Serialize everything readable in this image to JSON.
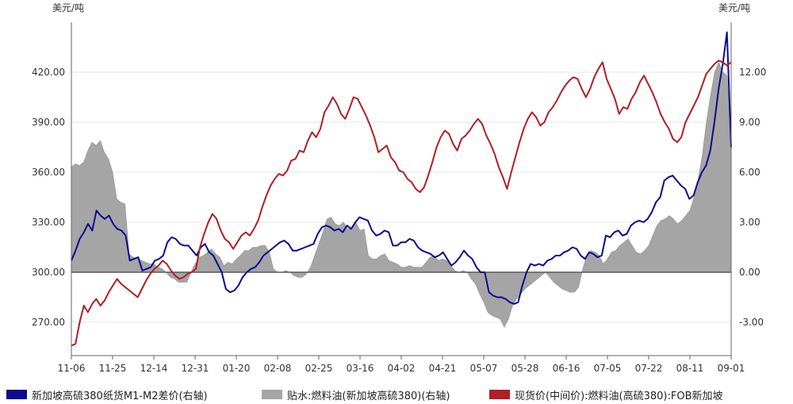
{
  "chart_data": {
    "type": "line",
    "left_unit": "美元/吨",
    "right_unit": "美元/吨",
    "x_tick_labels": [
      "11-06",
      "11-25",
      "12-14",
      "12-31",
      "01-20",
      "02-08",
      "02-25",
      "03-16",
      "04-02",
      "04-21",
      "05-07",
      "05-28",
      "06-16",
      "07-05",
      "07-22",
      "08-11",
      "09-01"
    ],
    "left_axis": {
      "ticks": [
        "270.00",
        "300.00",
        "330.00",
        "360.00",
        "390.00",
        "420.00"
      ],
      "ylim": [
        250,
        450
      ]
    },
    "right_axis": {
      "ticks": [
        "-3.00",
        "0.00",
        "3.00",
        "6.00",
        "9.00",
        "12.00"
      ],
      "ylim": [
        -5,
        15
      ]
    },
    "grid": true,
    "legend_position": "bottom",
    "series": [
      {
        "name": "新加坡高硫380纸货M1-M2差价(右轴)",
        "axis": "right",
        "type": "line",
        "color": "#0b0b8f",
        "values": [
          0.7,
          1.3,
          2.0,
          2.4,
          2.9,
          2.5,
          3.7,
          3.4,
          3.2,
          3.4,
          2.9,
          2.6,
          2.5,
          2.2,
          0.7,
          0.8,
          0.9,
          0.1,
          0.2,
          0.3,
          0.7,
          0.8,
          1.0,
          1.8,
          2.1,
          2.0,
          1.7,
          1.6,
          1.6,
          1.3,
          1.0,
          1.5,
          1.7,
          1.2,
          1.0,
          0.5,
          0.0,
          -1.0,
          -1.2,
          -1.1,
          -0.8,
          -0.3,
          0.0,
          0.2,
          0.3,
          0.6,
          1.0,
          1.2,
          1.4,
          1.6,
          1.8,
          1.9,
          1.7,
          1.3,
          1.3,
          1.4,
          1.5,
          1.6,
          1.7,
          2.3,
          2.7,
          2.8,
          2.7,
          2.5,
          2.6,
          2.4,
          2.8,
          2.6,
          3.0,
          3.3,
          3.2,
          3.1,
          2.5,
          2.2,
          2.3,
          2.5,
          2.4,
          1.6,
          1.6,
          1.8,
          1.8,
          2.0,
          1.9,
          1.5,
          1.3,
          1.2,
          1.1,
          0.9,
          1.0,
          1.2,
          0.8,
          0.4,
          0.6,
          0.9,
          1.3,
          1.0,
          0.8,
          0.3,
          0.0,
          0.0,
          -1.2,
          -1.4,
          -1.5,
          -1.5,
          -1.6,
          -1.8,
          -1.9,
          -1.8,
          -0.8,
          0.0,
          0.5,
          0.4,
          0.5,
          0.4,
          0.7,
          0.8,
          1.0,
          1.0,
          1.2,
          1.3,
          1.5,
          1.4,
          1.0,
          0.8,
          1.2,
          1.1,
          0.9,
          1.0,
          2.2,
          2.1,
          2.4,
          2.5,
          2.2,
          2.3,
          2.8,
          3.0,
          3.1,
          3.0,
          3.2,
          3.6,
          4.2,
          4.5,
          5.5,
          5.7,
          5.8,
          5.5,
          5.2,
          5.0,
          4.4,
          4.6,
          5.4,
          6.0,
          6.4,
          7.3,
          9.0,
          11.0,
          12.5,
          14.4,
          7.5
        ]
      },
      {
        "name": "贴水:燃料油(新加坡高硫380)(右轴)",
        "axis": "right",
        "type": "area",
        "color": "#a5a5a5",
        "values": [
          6.3,
          6.5,
          6.4,
          6.6,
          7.3,
          7.8,
          7.6,
          7.9,
          7.2,
          6.8,
          6.0,
          4.4,
          4.2,
          4.1,
          1.1,
          0.9,
          0.8,
          0.7,
          0.6,
          0.5,
          0.5,
          0.3,
          0.2,
          0.0,
          -0.3,
          -0.4,
          -0.6,
          -0.6,
          -0.6,
          0.0,
          0.5,
          0.9,
          1.0,
          1.2,
          1.4,
          1.1,
          0.9,
          0.4,
          0.6,
          0.5,
          0.8,
          1.0,
          1.3,
          1.3,
          1.5,
          1.5,
          1.6,
          1.6,
          1.2,
          0.2,
          0.0,
          0.0,
          0.1,
          0.0,
          -0.2,
          -0.3,
          -0.3,
          -0.1,
          0.3,
          1.0,
          1.7,
          2.4,
          3.2,
          3.3,
          2.9,
          2.8,
          3.0,
          2.6,
          2.6,
          3.0,
          2.5,
          2.6,
          1.0,
          0.8,
          0.8,
          1.0,
          1.1,
          0.7,
          0.6,
          0.5,
          0.3,
          0.3,
          0.4,
          0.3,
          0.3,
          0.3,
          0.6,
          0.9,
          1.0,
          0.7,
          0.8,
          0.7,
          0.4,
          0.1,
          0.0,
          0.1,
          0.0,
          -0.4,
          -0.7,
          -1.3,
          -1.8,
          -2.4,
          -2.6,
          -2.7,
          -2.8,
          -3.3,
          -2.8,
          -2.0,
          -1.6,
          -1.3,
          -1.0,
          -0.8,
          -0.6,
          -0.4,
          -0.2,
          0.0,
          -0.3,
          -0.6,
          -0.8,
          -1.0,
          -1.1,
          -1.2,
          -1.2,
          -0.9,
          0.2,
          1.0,
          1.3,
          1.2,
          1.0,
          0.5,
          0.8,
          1.2,
          1.3,
          1.6,
          1.8,
          2.0,
          1.6,
          1.2,
          1.1,
          1.3,
          1.6,
          2.2,
          2.8,
          3.1,
          3.2,
          3.4,
          3.2,
          2.9,
          3.1,
          3.4,
          3.7,
          4.5,
          5.6,
          7.0,
          9.0,
          10.6,
          12.0,
          12.6,
          12.0,
          11.8,
          8.0
        ]
      },
      {
        "name": "现货价(中间价):燃料油(高硫380):FOB新加坡",
        "axis": "left",
        "type": "line",
        "color": "#b01f24",
        "values": [
          256,
          257,
          270,
          280,
          276,
          281,
          284,
          280,
          283,
          288,
          292,
          296,
          293,
          291,
          289,
          287,
          285,
          290,
          295,
          299,
          302,
          304,
          307,
          305,
          301,
          298,
          296,
          297,
          299,
          300,
          302,
          315,
          323,
          330,
          335,
          332,
          325,
          320,
          318,
          314,
          318,
          322,
          324,
          322,
          326,
          331,
          339,
          346,
          352,
          356,
          359,
          358,
          361,
          367,
          368,
          373,
          372,
          379,
          384,
          381,
          386,
          396,
          400,
          405,
          401,
          395,
          392,
          398,
          405,
          404,
          399,
          394,
          388,
          381,
          372,
          374,
          376,
          369,
          366,
          361,
          360,
          356,
          354,
          350,
          348,
          351,
          358,
          366,
          375,
          381,
          385,
          383,
          377,
          373,
          380,
          382,
          385,
          389,
          392,
          389,
          382,
          377,
          371,
          363,
          357,
          350,
          360,
          369,
          378,
          386,
          392,
          396,
          393,
          388,
          390,
          396,
          399,
          403,
          408,
          412,
          415,
          417,
          416,
          410,
          405,
          410,
          417,
          422,
          426,
          416,
          410,
          404,
          395,
          399,
          398,
          404,
          408,
          414,
          418,
          413,
          408,
          402,
          395,
          390,
          386,
          380,
          378,
          381,
          390,
          395,
          400,
          405,
          412,
          419,
          422,
          425,
          427,
          426,
          424,
          426
        ]
      }
    ]
  }
}
